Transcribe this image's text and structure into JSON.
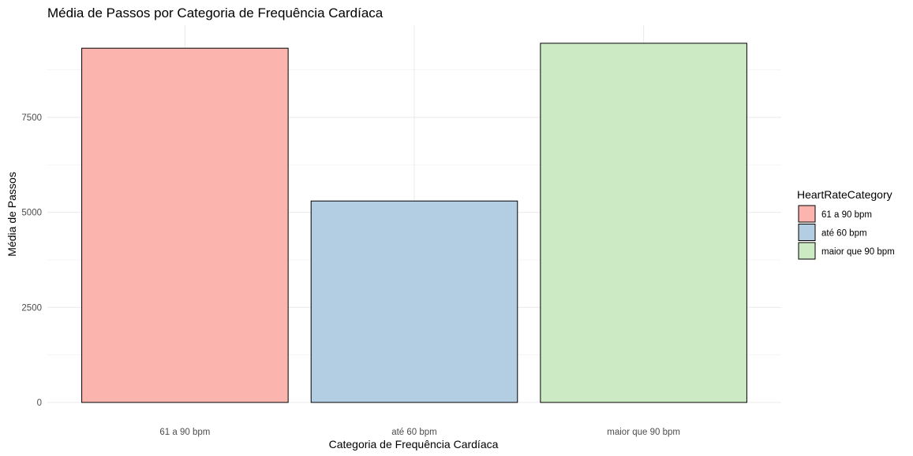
{
  "chart_data": {
    "type": "bar",
    "title": "Média de Passos por Categoria de Frequência Cardíaca",
    "xlabel": "Categoria de Frequência Cardíaca",
    "ylabel": "Média de Passos",
    "categories": [
      "61 a 90 bpm",
      "até 60 bpm",
      "maior que 90 bpm"
    ],
    "values": [
      9320,
      5300,
      9450
    ],
    "colors": [
      "#FBB4AE",
      "#B3CDE3",
      "#CCEBC5"
    ],
    "bar_outline": "#000000",
    "yticks": [
      0,
      2500,
      5000,
      7500
    ],
    "ytick_labels": [
      "0",
      "2500",
      "5000",
      "7500"
    ],
    "ylim": [
      0,
      9925
    ],
    "grid": true,
    "legend": {
      "title": "HeartRateCategory",
      "position": "right",
      "entries": [
        "61 a 90 bpm",
        "até 60 bpm",
        "maior que 90 bpm"
      ]
    }
  }
}
